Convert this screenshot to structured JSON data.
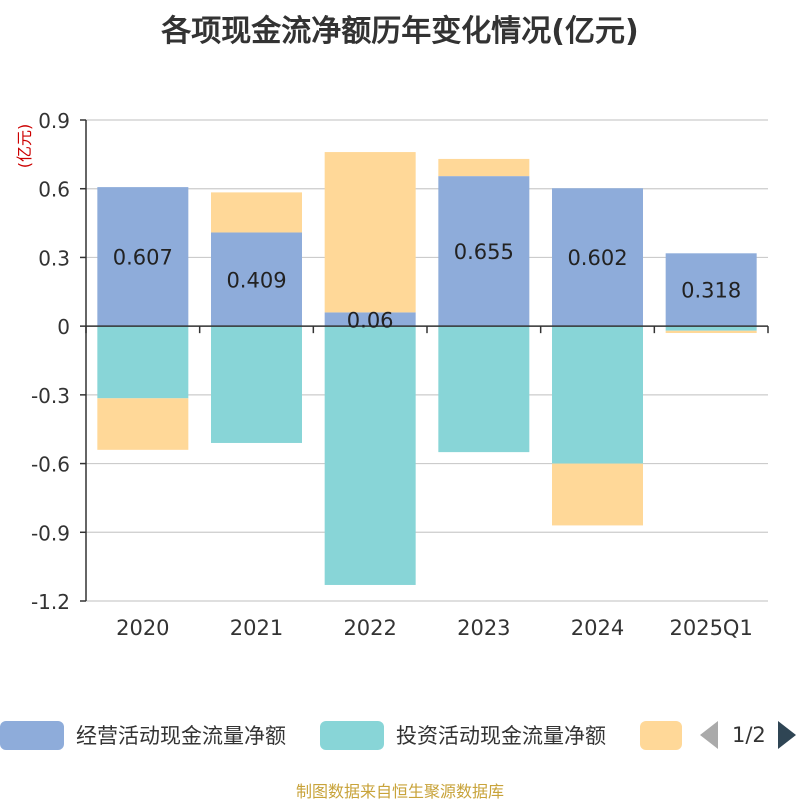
{
  "chart_data": {
    "type": "bar",
    "stacked": true,
    "title": "各项现金流净额历年变化情况(亿元)",
    "ylabel": "(亿元)",
    "categories": [
      "2020",
      "2021",
      "2022",
      "2023",
      "2024",
      "2025Q1"
    ],
    "ylim": [
      -1.2,
      0.9
    ],
    "yticks": [
      "0.9",
      "0.6",
      "0.3",
      "0",
      "-0.3",
      "-0.6",
      "-0.9",
      "-1.2"
    ],
    "ytick_values": [
      0.9,
      0.6,
      0.3,
      0,
      -0.3,
      -0.6,
      -0.9,
      -1.2
    ],
    "grid": true,
    "series": [
      {
        "name": "经营活动现金流量净额",
        "color": "#8eacda",
        "values": [
          0.607,
          0.409,
          0.06,
          0.655,
          0.602,
          0.318
        ],
        "labels": [
          "0.607",
          "0.409",
          "0.06",
          "0.655",
          "0.602",
          "0.318"
        ]
      },
      {
        "name": "投资活动现金流量净额",
        "color": "#88d5d7",
        "values": [
          -0.315,
          -0.51,
          -1.13,
          -0.55,
          -0.6,
          -0.02
        ]
      },
      {
        "name": "",
        "color": "#ffd898",
        "values": [
          -0.225,
          0.175,
          0.7,
          0.075,
          -0.27,
          -0.01
        ]
      }
    ]
  },
  "legend": {
    "items": [
      {
        "label": "经营活动现金流量净额",
        "color": "#8eacda"
      },
      {
        "label": "投资活动现金流量净额",
        "color": "#88d5d7"
      },
      {
        "label": "",
        "color": "#ffd898"
      }
    ],
    "page_text": "1/2"
  },
  "source_note": "制图数据来自恒生聚源数据库"
}
